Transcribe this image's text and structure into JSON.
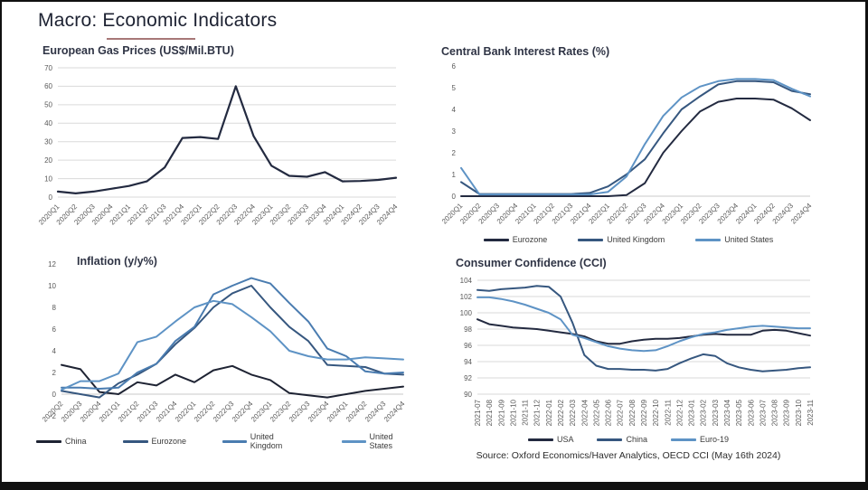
{
  "page": {
    "title": "Macro: Economic Indicators",
    "source": "Source: Oxford Economics/Haver Analytics, OECD CCI (May 16th 2024)",
    "colors": {
      "navy": "#232a40",
      "dark_blue": "#36577f",
      "mid_blue": "#4a7cb0",
      "light_blue": "#5e93c5",
      "grid": "#dadada",
      "axis": "#c8c8c8",
      "tick_text": "#595959",
      "title_underline": "#8a4b4b"
    }
  },
  "chart_data": [
    {
      "id": "gas",
      "type": "line",
      "title": "European Gas Prices (US$/Mil.BTU)",
      "xlabel": "",
      "ylabel": "",
      "ylim": [
        0,
        70
      ],
      "yticks": [
        0,
        10,
        20,
        30,
        40,
        50,
        60,
        70
      ],
      "grid": true,
      "legend_position": "none",
      "categories": [
        "2020Q1",
        "2020Q2",
        "2020Q3",
        "2020Q4",
        "2021Q1",
        "2021Q2",
        "2021Q3",
        "2021Q4",
        "2022Q1",
        "2022Q2",
        "2022Q3",
        "2022Q4",
        "2023Q1",
        "2023Q2",
        "2023Q3",
        "2023Q4",
        "2024Q1",
        "2024Q2",
        "2024Q3",
        "2024Q4"
      ],
      "series": [
        {
          "name": "European gas price",
          "color": "#232a40",
          "values": [
            3,
            2,
            3,
            4.5,
            6,
            8.5,
            16,
            32,
            32.5,
            31.5,
            60,
            33,
            17,
            11.5,
            11,
            13.5,
            8.5,
            8.7,
            9.3,
            10.5
          ]
        }
      ]
    },
    {
      "id": "rates",
      "type": "line",
      "title": "Central Bank Interest Rates (%)",
      "xlabel": "",
      "ylabel": "",
      "ylim": [
        0,
        6
      ],
      "yticks": [
        0,
        1,
        2,
        3,
        4,
        5,
        6
      ],
      "grid": false,
      "axis_line": 0,
      "legend_position": "bottom",
      "categories": [
        "2020Q1",
        "2020Q2",
        "2020Q3",
        "2020Q4",
        "2021Q1",
        "2021Q2",
        "2021Q3",
        "2021Q4",
        "2022Q1",
        "2022Q2",
        "2022Q3",
        "2022Q4",
        "2023Q1",
        "2023Q2",
        "2023Q3",
        "2023Q4",
        "2024Q1",
        "2024Q2",
        "2024Q3",
        "2024Q4"
      ],
      "series": [
        {
          "name": "Eurozone",
          "color": "#232a40",
          "values": [
            0,
            0,
            0,
            0,
            0,
            0,
            0,
            0,
            0,
            0.05,
            0.6,
            2,
            3,
            3.9,
            4.35,
            4.5,
            4.5,
            4.45,
            4.05,
            3.5
          ]
        },
        {
          "name": "United Kingdom",
          "color": "#36577f",
          "values": [
            0.65,
            0.1,
            0.1,
            0.1,
            0.1,
            0.1,
            0.1,
            0.15,
            0.45,
            1.0,
            1.7,
            2.9,
            4.0,
            4.6,
            5.15,
            5.3,
            5.3,
            5.25,
            4.85,
            4.7
          ]
        },
        {
          "name": "United States",
          "color": "#5e93c5",
          "values": [
            1.3,
            0.08,
            0.08,
            0.08,
            0.08,
            0.08,
            0.08,
            0.08,
            0.2,
            0.9,
            2.4,
            3.7,
            4.55,
            5.05,
            5.3,
            5.4,
            5.4,
            5.35,
            4.95,
            4.6
          ]
        }
      ]
    },
    {
      "id": "inflation",
      "type": "line",
      "title": "Inflation (y/y%)",
      "xlabel": "",
      "ylabel": "",
      "ylim": [
        -2,
        12
      ],
      "yticks": [
        -2,
        0,
        2,
        4,
        6,
        8,
        10,
        12
      ],
      "grid": false,
      "axis_line": 0,
      "label_anchor": 0,
      "legend_position": "bottom",
      "categories": [
        "2020Q2",
        "2020Q3",
        "2020Q4",
        "2021Q1",
        "2021Q2",
        "2021Q3",
        "2021Q4",
        "2022Q1",
        "2022Q2",
        "2022Q3",
        "2022Q4",
        "2023Q1",
        "2023Q2",
        "2023Q3",
        "2023Q4",
        "2024Q1",
        "2024Q2",
        "2024Q3",
        "2024Q4"
      ],
      "series": [
        {
          "name": "China",
          "color": "#1e2333",
          "values": [
            2.7,
            2.3,
            0.2,
            0,
            1.1,
            0.8,
            1.8,
            1.1,
            2.2,
            2.6,
            1.8,
            1.3,
            0.1,
            -0.1,
            -0.3,
            0,
            0.3,
            0.5,
            0.7
          ]
        },
        {
          "name": "Eurozone",
          "color": "#36577f",
          "values": [
            0.3,
            0,
            -0.3,
            1.0,
            1.8,
            2.8,
            4.6,
            6.1,
            8.0,
            9.3,
            10.0,
            8.0,
            6.2,
            4.9,
            2.7,
            2.6,
            2.5,
            1.9,
            1.8
          ]
        },
        {
          "name": "United Kingdom",
          "color": "#4a7cb0",
          "values": [
            0.6,
            0.6,
            0.5,
            0.6,
            2.0,
            2.8,
            4.9,
            6.2,
            9.2,
            10.0,
            10.7,
            10.2,
            8.4,
            6.7,
            4.2,
            3.5,
            2.1,
            1.9,
            2.0
          ]
        },
        {
          "name": "United States",
          "color": "#5e93c5",
          "values": [
            0.4,
            1.2,
            1.2,
            1.9,
            4.8,
            5.3,
            6.7,
            8.0,
            8.6,
            8.3,
            7.1,
            5.8,
            4.0,
            3.5,
            3.2,
            3.2,
            3.4,
            3.3,
            3.2
          ]
        }
      ]
    },
    {
      "id": "cci",
      "type": "line",
      "title": "Consumer Confidence (CCI)",
      "xlabel": "",
      "ylabel": "",
      "ylim": [
        90,
        104
      ],
      "yticks": [
        90,
        92,
        94,
        96,
        98,
        100,
        102,
        104
      ],
      "grid": true,
      "legend_position": "bottom",
      "categories": [
        "2021-07",
        "2021-08",
        "2021-09",
        "2021-10",
        "2021-11",
        "2021-12",
        "2022-01",
        "2022-02",
        "2022-03",
        "2022-04",
        "2022-05",
        "2022-06",
        "2022-07",
        "2022-08",
        "2022-09",
        "2022-10",
        "2022-11",
        "2022-12",
        "2023-01",
        "2023-02",
        "2023-03",
        "2023-04",
        "2023-05",
        "2023-06",
        "2023-07",
        "2023-08",
        "2023-09",
        "2023-10",
        "2023-11"
      ],
      "series": [
        {
          "name": "USA",
          "color": "#232a40",
          "values": [
            99.2,
            98.6,
            98.4,
            98.2,
            98.1,
            98.0,
            97.8,
            97.6,
            97.4,
            97.1,
            96.5,
            96.2,
            96.2,
            96.5,
            96.7,
            96.8,
            96.8,
            96.9,
            97.1,
            97.3,
            97.4,
            97.3,
            97.3,
            97.3,
            97.8,
            97.9,
            97.8,
            97.5,
            97.2
          ]
        },
        {
          "name": "China",
          "color": "#36577f",
          "values": [
            102.8,
            102.7,
            102.9,
            103.0,
            103.1,
            103.3,
            103.2,
            102.0,
            98.8,
            94.8,
            93.5,
            93.1,
            93.1,
            93.0,
            93.0,
            92.9,
            93.1,
            93.8,
            94.4,
            94.9,
            94.7,
            93.8,
            93.3,
            93.0,
            92.8,
            92.9,
            93.0,
            93.2,
            93.3
          ]
        },
        {
          "name": "Euro-19",
          "color": "#5e93c5",
          "values": [
            101.9,
            101.9,
            101.7,
            101.4,
            101.0,
            100.5,
            100.0,
            99.2,
            97.3,
            96.9,
            96.4,
            95.9,
            95.6,
            95.4,
            95.3,
            95.4,
            95.9,
            96.5,
            97.0,
            97.4,
            97.6,
            97.9,
            98.1,
            98.3,
            98.4,
            98.3,
            98.2,
            98.1,
            98.1
          ]
        }
      ]
    }
  ]
}
